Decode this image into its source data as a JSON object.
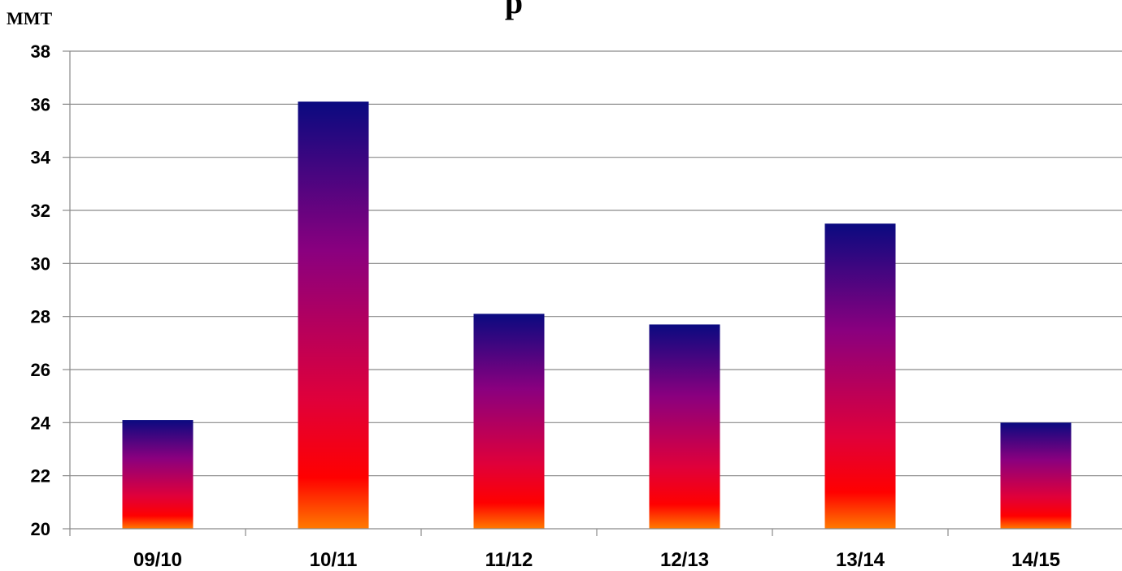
{
  "chart_data": {
    "type": "bar",
    "title": "p",
    "unit_label": "MMT",
    "categories": [
      "09/10",
      "10/11",
      "11/12",
      "12/13",
      "13/14",
      "14/15"
    ],
    "values": [
      24.1,
      36.1,
      28.1,
      27.7,
      31.5,
      24.0
    ],
    "ylim": [
      20,
      38
    ],
    "yticks": [
      "20",
      "22",
      "24",
      "26",
      "28",
      "30",
      "32",
      "34",
      "36",
      "38"
    ],
    "grid": true,
    "legend": "none",
    "bar_gradient": [
      "#0a0a80",
      "#8a007f",
      "#e0003a",
      "#ff0000",
      "#ff7a00"
    ]
  }
}
